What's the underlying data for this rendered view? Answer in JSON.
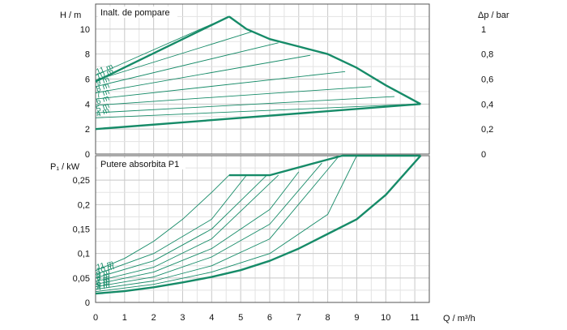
{
  "chart_data": [
    {
      "type": "line",
      "title": "Inalt. de pompare",
      "ylabel_left": "H / m",
      "ylabel_right": "Δp / bar",
      "xlabel": "Q / m³/h",
      "xlim": [
        0,
        11.5
      ],
      "ylim": [
        0,
        12
      ],
      "xticks": [
        "0",
        "1",
        "2",
        "3",
        "4",
        "5",
        "6",
        "7",
        "8",
        "9",
        "10",
        "11"
      ],
      "yticks_left": [
        "0",
        "2",
        "4",
        "6",
        "8",
        "10"
      ],
      "yticks_right": [
        "0",
        "0,2",
        "0,4",
        "0,6",
        "0,8",
        "1"
      ],
      "grid": true,
      "color": "#168b68",
      "series": [
        {
          "name": "11 m",
          "x": [
            0,
            4.6
          ],
          "y": [
            6.3,
            11.0
          ]
        },
        {
          "name": "10 m",
          "x": [
            0,
            5.4
          ],
          "y": [
            5.9,
            9.8
          ]
        },
        {
          "name": "9 m",
          "x": [
            0,
            6.3
          ],
          "y": [
            5.4,
            8.9
          ]
        },
        {
          "name": "8 m",
          "x": [
            0,
            7.4
          ],
          "y": [
            4.9,
            7.9
          ]
        },
        {
          "name": "7 m",
          "x": [
            0,
            8.6
          ],
          "y": [
            4.4,
            6.6
          ]
        },
        {
          "name": "6 m",
          "x": [
            0,
            9.5
          ],
          "y": [
            3.9,
            5.4
          ]
        },
        {
          "name": "5 m",
          "x": [
            0,
            10.3
          ],
          "y": [
            3.3,
            4.6
          ]
        },
        {
          "name": "4 m",
          "x": [
            0,
            11.1
          ],
          "y": [
            2.9,
            4.0
          ]
        },
        {
          "name": "",
          "x": [
            0,
            11.2
          ],
          "y": [
            2.0,
            4.0
          ]
        },
        {
          "name": "",
          "x": [
            0,
            4.6
          ],
          "y": [
            5.8,
            11.0
          ]
        },
        {
          "name": "",
          "x": [
            4.6,
            5.2,
            6.0,
            7.0,
            8.0,
            9.0,
            10.0,
            11.2
          ],
          "y": [
            11.0,
            10.0,
            9.2,
            8.6,
            8.0,
            6.9,
            5.5,
            4.0
          ]
        }
      ]
    },
    {
      "type": "line",
      "title": "Putere absorbita P1",
      "ylabel": "P₁ / kW",
      "xlabel": "Q / m³/h",
      "xlim": [
        0,
        11.5
      ],
      "ylim": [
        0,
        0.3
      ],
      "xticks": [
        "0",
        "1",
        "2",
        "3",
        "4",
        "5",
        "6",
        "7",
        "8",
        "9",
        "10",
        "11"
      ],
      "yticks": [
        "0",
        "0,05",
        "0,1",
        "0,15",
        "0,2",
        "0,25"
      ],
      "grid": true,
      "color": "#168b68",
      "series": [
        {
          "name": "11 m",
          "x": [
            0,
            1,
            2,
            3,
            4,
            4.6
          ],
          "y": [
            0.065,
            0.09,
            0.125,
            0.17,
            0.225,
            0.26
          ]
        },
        {
          "name": "10 m",
          "x": [
            0,
            2,
            4,
            5.2
          ],
          "y": [
            0.057,
            0.1,
            0.17,
            0.26
          ]
        },
        {
          "name": "9 m",
          "x": [
            0,
            2,
            4,
            5.9
          ],
          "y": [
            0.05,
            0.085,
            0.15,
            0.26
          ]
        },
        {
          "name": "8 m",
          "x": [
            0,
            2,
            4,
            6.3
          ],
          "y": [
            0.043,
            0.072,
            0.13,
            0.26
          ]
        },
        {
          "name": "7 m",
          "x": [
            0,
            2,
            4,
            6,
            7.0
          ],
          "y": [
            0.037,
            0.062,
            0.11,
            0.19,
            0.267
          ]
        },
        {
          "name": "6 m",
          "x": [
            0,
            2,
            4,
            6,
            7.8
          ],
          "y": [
            0.032,
            0.052,
            0.093,
            0.16,
            0.285
          ]
        },
        {
          "name": "5 m",
          "x": [
            0,
            2,
            4,
            6,
            8.4
          ],
          "y": [
            0.027,
            0.044,
            0.075,
            0.13,
            0.3
          ]
        },
        {
          "name": "4 m",
          "x": [
            0,
            2,
            4,
            6,
            8,
            9.0
          ],
          "y": [
            0.022,
            0.037,
            0.062,
            0.1,
            0.18,
            0.3
          ]
        },
        {
          "name": "",
          "x": [
            0,
            1,
            2,
            3,
            4,
            5,
            6,
            7,
            8,
            9,
            10,
            11.2
          ],
          "y": [
            0.018,
            0.023,
            0.031,
            0.041,
            0.052,
            0.066,
            0.085,
            0.11,
            0.14,
            0.17,
            0.22,
            0.3
          ]
        },
        {
          "name": "",
          "x": [
            4.6,
            6.0,
            8.5,
            11.2
          ],
          "y": [
            0.26,
            0.26,
            0.3,
            0.3
          ]
        }
      ]
    }
  ]
}
